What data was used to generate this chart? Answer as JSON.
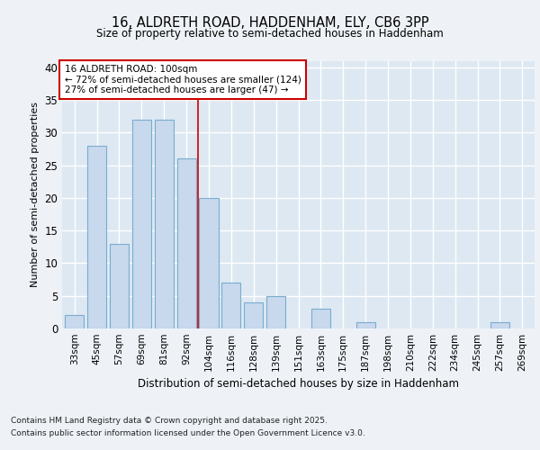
{
  "title1": "16, ALDRETH ROAD, HADDENHAM, ELY, CB6 3PP",
  "title2": "Size of property relative to semi-detached houses in Haddenham",
  "xlabel": "Distribution of semi-detached houses by size in Haddenham",
  "ylabel": "Number of semi-detached properties",
  "bar_labels": [
    "33sqm",
    "45sqm",
    "57sqm",
    "69sqm",
    "81sqm",
    "92sqm",
    "104sqm",
    "116sqm",
    "128sqm",
    "139sqm",
    "151sqm",
    "163sqm",
    "175sqm",
    "187sqm",
    "198sqm",
    "210sqm",
    "222sqm",
    "234sqm",
    "245sqm",
    "257sqm",
    "269sqm"
  ],
  "bar_values": [
    2,
    28,
    13,
    32,
    32,
    26,
    20,
    7,
    4,
    5,
    0,
    3,
    0,
    1,
    0,
    0,
    0,
    0,
    0,
    1,
    0
  ],
  "bar_color": "#c8d8ed",
  "bar_edge_color": "#7aadcf",
  "property_line_x": 5.5,
  "annotation_line1": "16 ALDRETH ROAD: 100sqm",
  "annotation_line2": "← 72% of semi-detached houses are smaller (124)",
  "annotation_line3": "27% of semi-detached houses are larger (47) →",
  "red_line_color": "#cc0000",
  "annotation_box_color": "#ffffff",
  "annotation_box_edge": "#cc0000",
  "bg_color": "#eef2f7",
  "plot_bg_color": "#dde8f2",
  "grid_color": "#ffffff",
  "ylim": [
    0,
    41
  ],
  "yticks": [
    0,
    5,
    10,
    15,
    20,
    25,
    30,
    35,
    40
  ],
  "footer1": "Contains HM Land Registry data © Crown copyright and database right 2025.",
  "footer2": "Contains public sector information licensed under the Open Government Licence v3.0."
}
